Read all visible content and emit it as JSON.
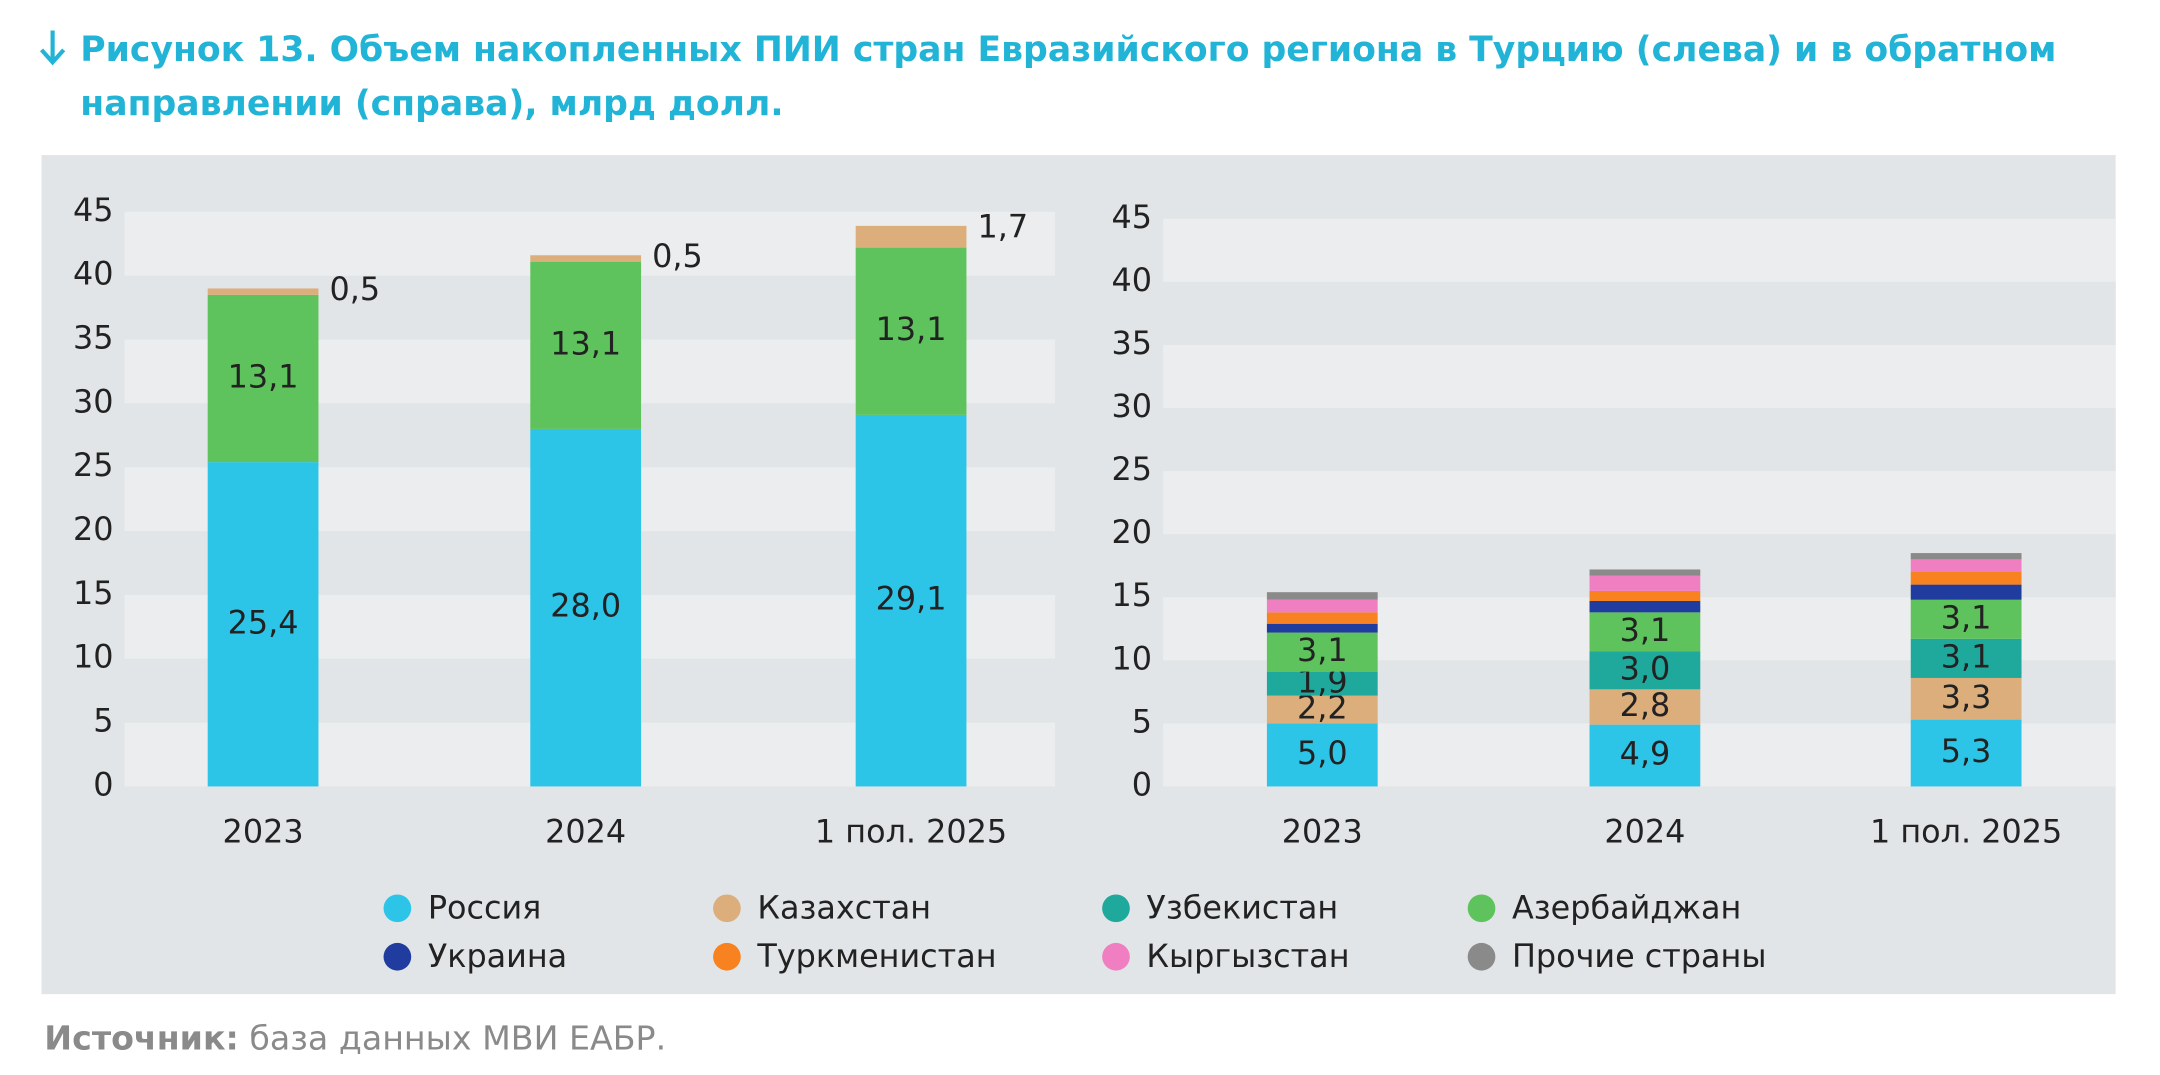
{
  "title": "Рисунок 13. Объем накопленных ПИИ стран Евразийского региона в Турцию (слева) и в обратном направлении (справа), млрд долл.",
  "legend": [
    {
      "name": "Россия",
      "color": "#2cc5e8"
    },
    {
      "name": "Казахстан",
      "color": "#dcae7c"
    },
    {
      "name": "Узбекистан",
      "color": "#1fa89c"
    },
    {
      "name": "Азербайджан",
      "color": "#5ec35c"
    },
    {
      "name": "Украина",
      "color": "#1f3c9e"
    },
    {
      "name": "Туркменистан",
      "color": "#f7821f"
    },
    {
      "name": "Кыргызстан",
      "color": "#f07fc2"
    },
    {
      "name": "Прочие страны",
      "color": "#8a8a8a"
    }
  ],
  "chart_data": [
    {
      "type": "stacked_bar",
      "categories": [
        "2023",
        "2024",
        "1 пол. 2025"
      ],
      "ylim": [
        0,
        45
      ],
      "yticks": [
        0,
        5,
        10,
        15,
        20,
        25,
        30,
        35,
        40,
        45
      ],
      "series": [
        {
          "legend": 0,
          "values": [
            25.4,
            28.0,
            29.1
          ],
          "value_labels": [
            "25,4",
            "28,0",
            "29,1"
          ]
        },
        {
          "legend": 3,
          "values": [
            13.1,
            13.1,
            13.1
          ],
          "value_labels": [
            "13,1",
            "13,1",
            "13,1"
          ]
        },
        {
          "legend": 1,
          "values": [
            0.5,
            0.5,
            1.7
          ],
          "value_labels": [
            "0,5",
            "0,5",
            "1,7"
          ],
          "label_outside": true
        }
      ]
    },
    {
      "type": "stacked_bar",
      "categories": [
        "2023",
        "2024",
        "1 пол. 2025"
      ],
      "ylim": [
        0,
        45
      ],
      "yticks": [
        0,
        5,
        10,
        15,
        20,
        25,
        30,
        35,
        40,
        45
      ],
      "series": [
        {
          "legend": 0,
          "values": [
            5.0,
            4.9,
            5.3
          ],
          "value_labels": [
            "5,0",
            "4,9",
            "5,3"
          ]
        },
        {
          "legend": 1,
          "values": [
            2.2,
            2.8,
            3.3
          ],
          "value_labels": [
            "2,2",
            "2,8",
            "3,3"
          ]
        },
        {
          "legend": 2,
          "values": [
            1.9,
            3.0,
            3.1
          ],
          "value_labels": [
            "1,9",
            "3,0",
            "3,1"
          ]
        },
        {
          "legend": 3,
          "values": [
            3.1,
            3.1,
            3.1
          ],
          "value_labels": [
            "3,1",
            "3,1",
            "3,1"
          ]
        },
        {
          "legend": 4,
          "values": [
            0.7,
            0.9,
            1.2
          ]
        },
        {
          "legend": 5,
          "values": [
            0.9,
            0.8,
            1.0
          ]
        },
        {
          "legend": 6,
          "values": [
            1.0,
            1.2,
            1.0
          ]
        },
        {
          "legend": 7,
          "values": [
            0.6,
            0.5,
            0.5
          ]
        }
      ]
    }
  ],
  "source": {
    "label": "Источник:",
    "text": "база данных МВИ ЕАБР."
  }
}
